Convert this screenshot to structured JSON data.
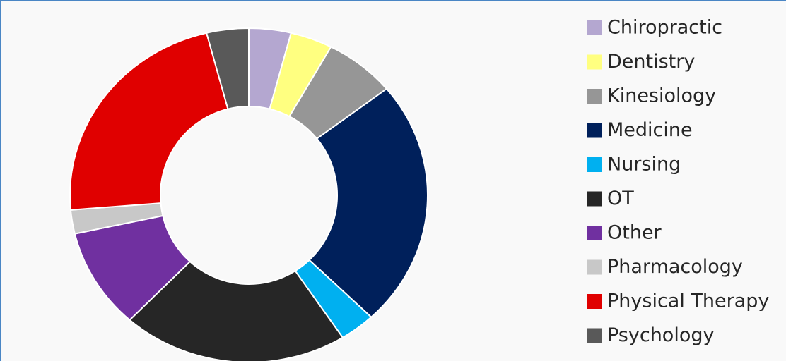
{
  "chart_data": {
    "type": "donut",
    "categories": [
      "Chiropractic",
      "Dentistry",
      "Kinesiology",
      "Medicine",
      "Nursing",
      "OT",
      "Other",
      "Pharmacology",
      "Physical Therapy",
      "Psychology"
    ],
    "values": [
      3.8,
      3.8,
      6.4,
      24,
      3.2,
      20.4,
      9.7,
      2.3,
      22.6,
      3.8
    ],
    "colors": [
      "#b4a7d0",
      "#ffff80",
      "#969696",
      "#00205b",
      "#00b0f0",
      "#262626",
      "#7030a0",
      "#c8c8c8",
      "#e00000",
      "#595959"
    ],
    "legend": "right"
  }
}
